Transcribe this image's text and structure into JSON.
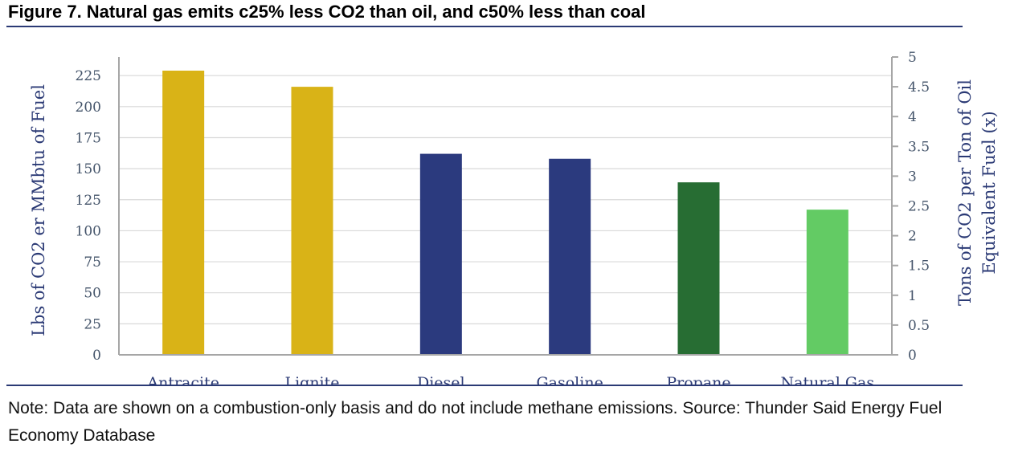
{
  "figure": {
    "title": "Figure 7. Natural gas emits c25% less CO2 than oil, and c50% less than coal",
    "note": "Note: Data are shown on a combustion-only basis and do not include methane emissions. Source: Thunder Said Energy Fuel Economy Database"
  },
  "chart_data": {
    "type": "bar",
    "categories": [
      "Antracite",
      "Lignite",
      "Diesel",
      "Gasoline",
      "Propane",
      "Natural Gas"
    ],
    "values": [
      229,
      216,
      162,
      158,
      139,
      117
    ],
    "bar_colors": [
      "#d9b317",
      "#d9b317",
      "#2b3a7e",
      "#2b3a7e",
      "#276d33",
      "#63cb64"
    ],
    "ylabel": "Lbs of CO2 er MMbtu of Fuel",
    "ylabel_right": "Tons of CO2 per Ton of Oil Equivalent Fuel (x)",
    "ylim": [
      0,
      240
    ],
    "yticks": [
      0,
      25,
      50,
      75,
      100,
      125,
      150,
      175,
      200,
      225
    ],
    "ylim_right": [
      0,
      5
    ],
    "yticks_right": [
      0,
      0.5,
      1,
      1.5,
      2,
      2.5,
      3,
      3.5,
      4,
      4.5,
      5
    ],
    "yticks_right_labels": [
      "0",
      "0.5",
      "1",
      "1.5",
      "2",
      "2.5",
      "3",
      "3.5",
      "4",
      "4.5",
      "5"
    ],
    "grid": true,
    "legend": "none"
  }
}
